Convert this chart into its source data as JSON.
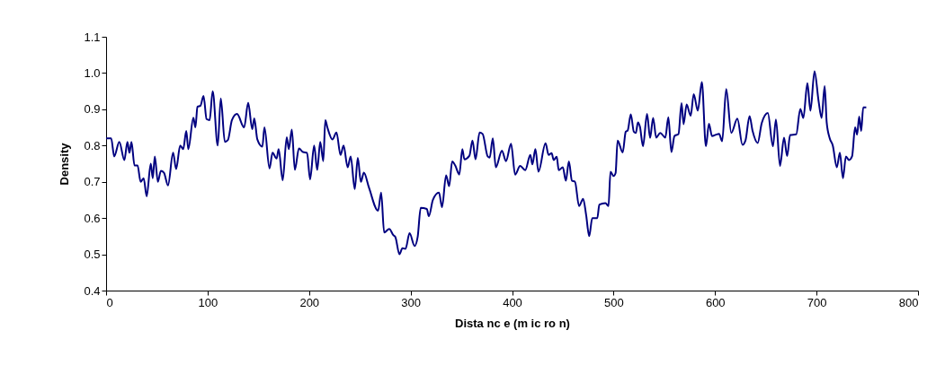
{
  "chart_data": {
    "type": "line",
    "xlabel": "Dista nc e (m ic ro n)",
    "ylabel": "Density",
    "xlim": [
      0,
      800
    ],
    "xticks": [
      0,
      100,
      200,
      300,
      400,
      500,
      600,
      700,
      800
    ],
    "ylim": [
      0.4,
      1.1
    ],
    "yticks": [
      {
        "value": 0.4,
        "label": "0.4"
      },
      {
        "value": 0.5,
        "label": "0.5"
      },
      {
        "value": 0.6,
        "label": "0.6"
      },
      {
        "value": 0.7,
        "label": "0.7"
      },
      {
        "value": 0.8,
        "label": "0.8"
      },
      {
        "value": 0.9,
        "label": "0.9"
      },
      {
        "value": 1.0,
        "label": "1.0"
      },
      {
        "value": 1.1,
        "label": "1.1"
      }
    ],
    "grid": false,
    "marker": "none",
    "line_style": "solid",
    "series": [
      {
        "color": "#000080",
        "x": [
          0,
          5,
          8,
          13,
          18,
          21,
          23,
          25,
          28,
          31,
          34,
          37,
          40,
          44,
          46,
          48,
          51,
          54,
          57,
          61,
          66,
          69,
          73,
          76,
          79,
          81,
          86,
          88,
          90,
          93,
          96,
          99,
          102,
          105,
          110,
          113,
          117,
          120,
          124,
          129,
          136,
          140,
          144,
          146,
          149,
          154,
          156,
          161,
          164,
          168,
          170,
          174,
          178,
          180,
          183,
          186,
          190,
          194,
          198,
          201,
          205,
          208,
          211,
          214,
          216,
          218,
          223,
          227,
          231,
          234,
          238,
          241,
          245,
          248,
          251,
          254,
          259,
          268,
          271,
          274,
          279,
          283,
          285,
          289,
          292,
          295,
          299,
          304,
          307,
          310,
          316,
          318,
          322,
          328,
          331,
          335,
          338,
          341,
          344,
          348,
          351,
          353,
          358,
          361,
          364,
          368,
          371,
          376,
          378,
          381,
          384,
          390,
          394,
          399,
          403,
          408,
          413,
          418,
          420,
          423,
          426,
          433,
          436,
          439,
          441,
          444,
          446,
          450,
          453,
          456,
          459,
          462,
          466,
          470,
          473,
          476,
          479,
          484,
          486,
          492,
          495,
          497,
          500,
          502,
          504,
          509,
          512,
          514,
          517,
          520,
          522,
          524,
          526,
          529,
          533,
          536,
          539,
          542,
          546,
          551,
          554,
          557,
          560,
          564,
          567,
          569,
          572,
          576,
          579,
          583,
          587,
          591,
          594,
          597,
          601,
          604,
          607,
          611,
          616,
          622,
          627,
          630,
          634,
          637,
          642,
          646,
          652,
          657,
          660,
          664,
          668,
          671,
          674,
          680,
          684,
          687,
          691,
          694,
          698,
          702,
          705,
          708,
          710,
          713,
          716,
          720,
          723,
          726,
          729,
          732,
          735,
          738,
          740,
          742,
          744,
          746,
          749
        ],
        "values": [
          0.82,
          0.82,
          0.77,
          0.81,
          0.76,
          0.81,
          0.78,
          0.81,
          0.745,
          0.745,
          0.7,
          0.71,
          0.66,
          0.75,
          0.71,
          0.77,
          0.7,
          0.73,
          0.725,
          0.69,
          0.78,
          0.735,
          0.8,
          0.79,
          0.84,
          0.79,
          0.877,
          0.85,
          0.907,
          0.91,
          0.937,
          0.873,
          0.87,
          0.95,
          0.8,
          0.93,
          0.81,
          0.815,
          0.87,
          0.887,
          0.85,
          0.918,
          0.845,
          0.875,
          0.817,
          0.797,
          0.85,
          0.737,
          0.78,
          0.764,
          0.79,
          0.704,
          0.823,
          0.79,
          0.844,
          0.733,
          0.792,
          0.782,
          0.78,
          0.707,
          0.8,
          0.733,
          0.81,
          0.757,
          0.87,
          0.85,
          0.817,
          0.836,
          0.774,
          0.8,
          0.74,
          0.77,
          0.68,
          0.766,
          0.7,
          0.725,
          0.684,
          0.62,
          0.67,
          0.56,
          0.57,
          0.553,
          0.548,
          0.5,
          0.517,
          0.515,
          0.558,
          0.523,
          0.548,
          0.628,
          0.625,
          0.605,
          0.65,
          0.67,
          0.63,
          0.718,
          0.688,
          0.756,
          0.745,
          0.72,
          0.79,
          0.762,
          0.772,
          0.814,
          0.762,
          0.836,
          0.832,
          0.77,
          0.767,
          0.82,
          0.74,
          0.786,
          0.757,
          0.805,
          0.72,
          0.744,
          0.732,
          0.774,
          0.748,
          0.79,
          0.728,
          0.806,
          0.774,
          0.779,
          0.76,
          0.769,
          0.732,
          0.74,
          0.703,
          0.756,
          0.703,
          0.7,
          0.633,
          0.653,
          0.608,
          0.55,
          0.6,
          0.6,
          0.637,
          0.641,
          0.633,
          0.728,
          0.716,
          0.724,
          0.814,
          0.781,
          0.838,
          0.842,
          0.886,
          0.838,
          0.835,
          0.864,
          0.852,
          0.798,
          0.887,
          0.821,
          0.876,
          0.822,
          0.835,
          0.822,
          0.878,
          0.782,
          0.826,
          0.832,
          0.917,
          0.859,
          0.913,
          0.882,
          0.942,
          0.896,
          0.975,
          0.798,
          0.86,
          0.826,
          0.83,
          0.832,
          0.812,
          0.956,
          0.835,
          0.874,
          0.802,
          0.814,
          0.881,
          0.84,
          0.807,
          0.862,
          0.89,
          0.798,
          0.872,
          0.744,
          0.822,
          0.771,
          0.829,
          0.831,
          0.901,
          0.876,
          0.972,
          0.896,
          1.005,
          0.923,
          0.876,
          0.964,
          0.864,
          0.82,
          0.8,
          0.74,
          0.78,
          0.71,
          0.77,
          0.76,
          0.77,
          0.85,
          0.83,
          0.88,
          0.84,
          0.905,
          0.905
        ]
      }
    ]
  }
}
